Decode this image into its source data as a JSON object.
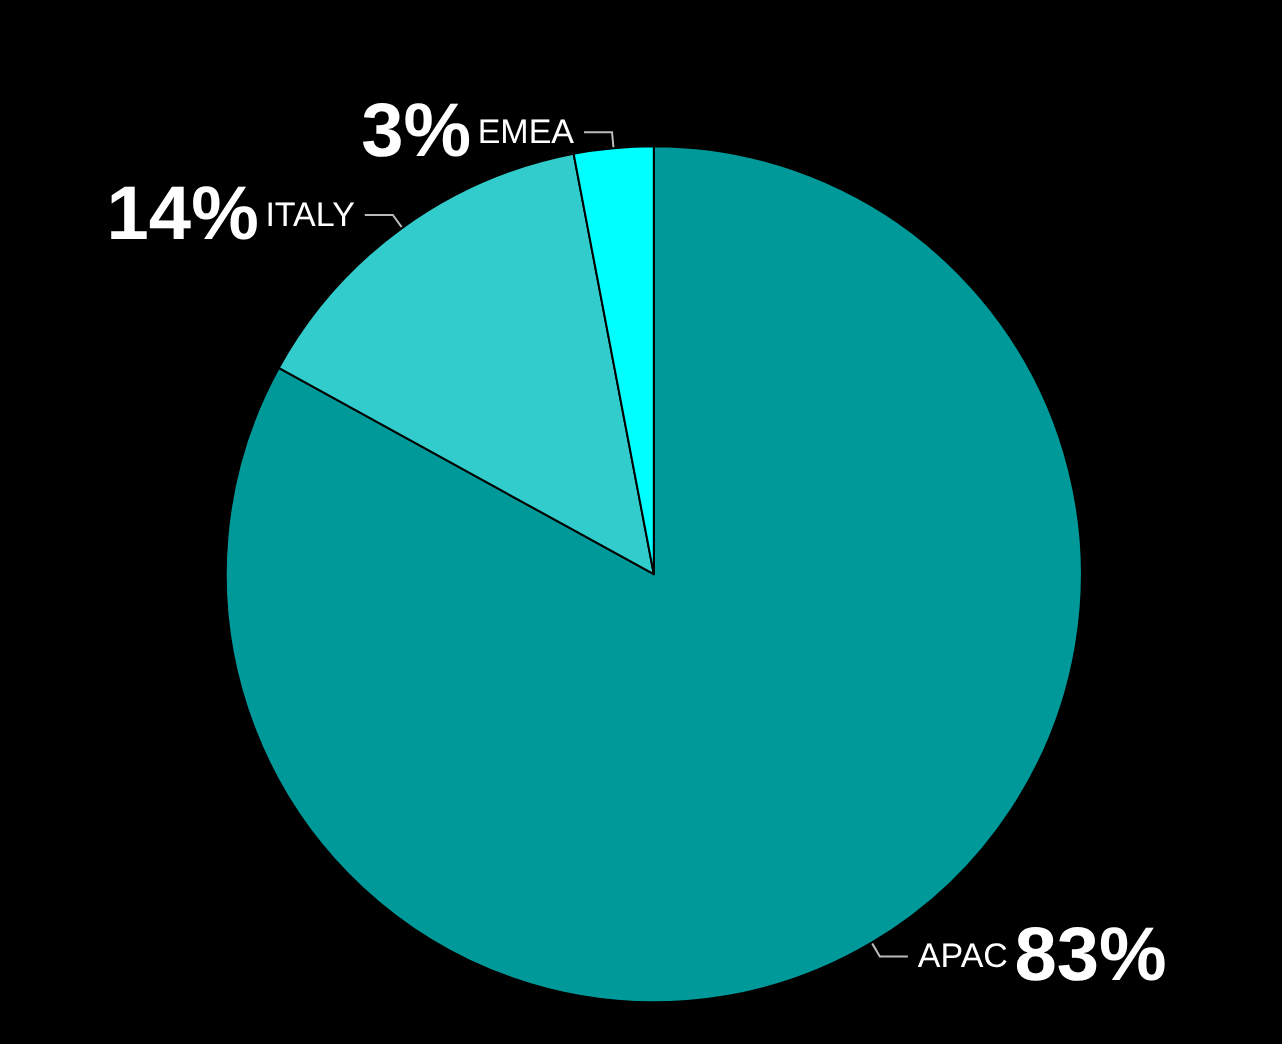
{
  "chart_data": {
    "type": "pie",
    "categories": [
      "APAC",
      "ITALY",
      "EMEA"
    ],
    "values": [
      83,
      14,
      3
    ],
    "colors": [
      "#009999",
      "#33cccc",
      "#00ffff"
    ],
    "value_labels": [
      "83%",
      "14%",
      "3%"
    ],
    "legend": false
  }
}
